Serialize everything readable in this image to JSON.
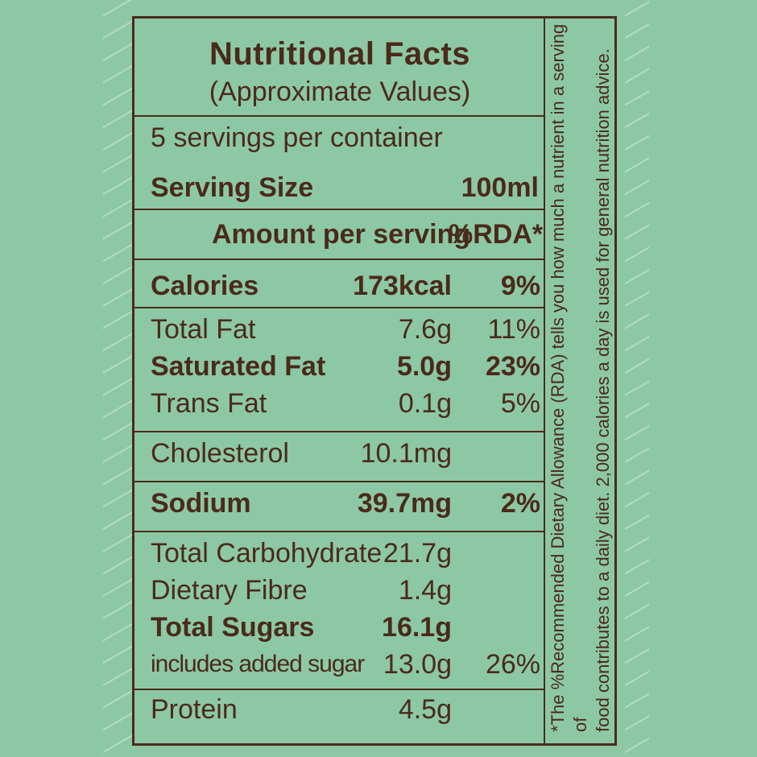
{
  "label": {
    "title": "Nutritional Facts",
    "subtitle": "(Approximate Values)",
    "servings_per_container": "5 servings per container",
    "serving_size_label": "Serving Size",
    "serving_size_value": "100ml",
    "amount_header": "Amount per serving",
    "rda_header": "%RDA*",
    "rows": [
      {
        "name": "Calories",
        "amount": "173kcal",
        "rda": "9%"
      },
      {
        "name": "Total Fat",
        "amount": "7.6g",
        "rda": "11%"
      },
      {
        "name": "Saturated Fat",
        "amount": "5.0g",
        "rda": "23%"
      },
      {
        "name": "Trans Fat",
        "amount": "0.1g",
        "rda": "5%"
      },
      {
        "name": "Cholesterol",
        "amount": "10.1mg",
        "rda": ""
      },
      {
        "name": "Sodium",
        "amount": "39.7mg",
        "rda": "2%"
      },
      {
        "name": "Total Carbohydrate",
        "amount": "21.7g",
        "rda": ""
      },
      {
        "name": "Dietary Fibre",
        "amount": "1.4g",
        "rda": ""
      },
      {
        "name": "Total Sugars",
        "amount": "16.1g",
        "rda": ""
      },
      {
        "name": "includes added sugar",
        "amount": "13.0g",
        "rda": "26%"
      },
      {
        "name": "Protein",
        "amount": "4.5g",
        "rda": ""
      }
    ],
    "footnote_line1": "*The %Recommended Dietary Allowance (RDA) tells you how much a nutrient in a serving of",
    "footnote_line2": "food contributes to a daily diet. 2,000 calories a day is used for general nutrition advice."
  },
  "colors": {
    "background": "#8dc8a4",
    "ink": "#4a2a1a"
  }
}
